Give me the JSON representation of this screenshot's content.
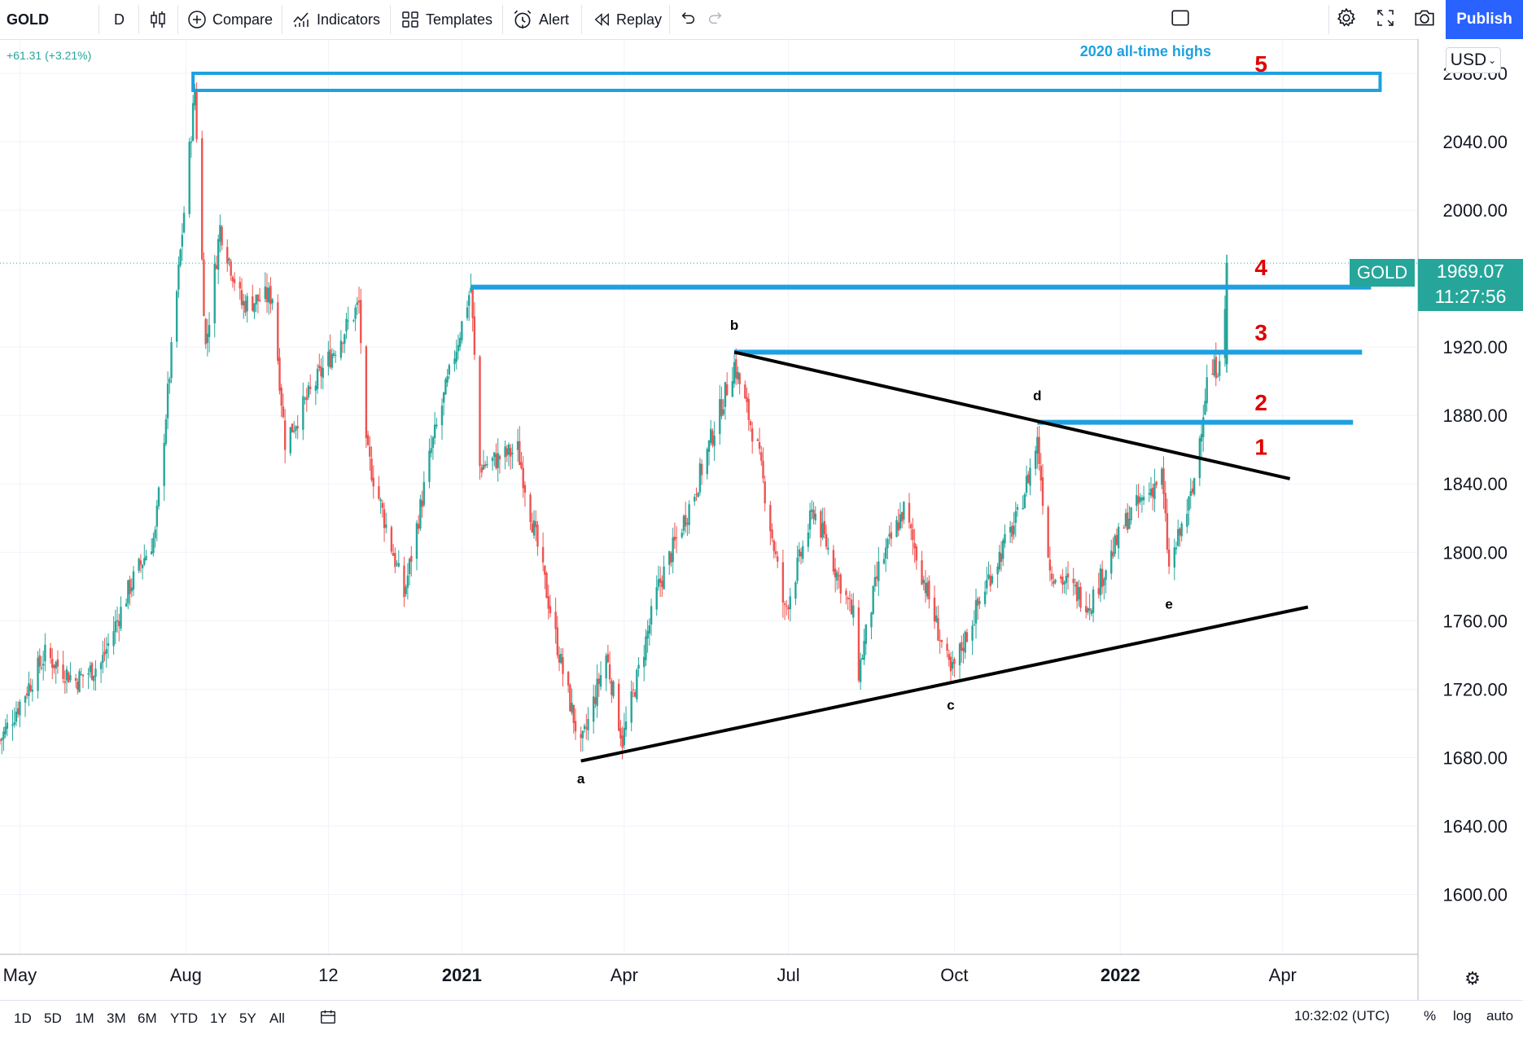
{
  "toolbar": {
    "symbol": "GOLD",
    "interval": "D",
    "compare": "Compare",
    "indicators": "Indicators",
    "templates": "Templates",
    "alert": "Alert",
    "replay": "Replay",
    "publish": "Publish",
    "icons": [
      "candles-icon",
      "plus-circle-icon",
      "indicators-icon",
      "templates-icon",
      "alarm-clock-icon",
      "replay-icon",
      "undo-icon",
      "redo-icon",
      "layout-icon",
      "gear-icon",
      "fullscreen-icon",
      "camera-icon"
    ]
  },
  "legend": {
    "change": "+61.31 (+3.21%)"
  },
  "currency": "USD",
  "last_price": {
    "symbol_tag": "GOLD",
    "price": "1969.07",
    "countdown": "11:27:56"
  },
  "bottom": {
    "ranges": [
      "1D",
      "5D",
      "1M",
      "3M",
      "6M",
      "YTD",
      "1Y",
      "5Y",
      "All"
    ],
    "clock": "10:32:02 (UTC)",
    "percent": "%",
    "log": "log",
    "auto": "auto"
  },
  "colors": {
    "up": "#26a69a",
    "down": "#ef5350",
    "level": "#1ea0e0",
    "accent": "#2962ff",
    "annotation": "#e00000"
  },
  "chart_data": {
    "type": "candlestick",
    "symbol": "GOLD",
    "timeframe": "D",
    "ylim": [
      1565,
      2100
    ],
    "x_range": [
      "2020-04-20",
      "2022-06-15"
    ],
    "yticks": [
      "2080.00",
      "2040.00",
      "2000.00",
      "1920.00",
      "1880.00",
      "1840.00",
      "1800.00",
      "1760.00",
      "1720.00",
      "1680.00",
      "1640.00",
      "1600.00"
    ],
    "xticks": [
      {
        "label": "May",
        "bold": false,
        "date": "2020-05-01"
      },
      {
        "label": "Aug",
        "bold": false,
        "date": "2020-08-01"
      },
      {
        "label": "12",
        "bold": false,
        "date": "2020-10-19"
      },
      {
        "label": "2021",
        "bold": true,
        "date": "2021-01-01"
      },
      {
        "label": "Apr",
        "bold": false,
        "date": "2021-04-01"
      },
      {
        "label": "Jul",
        "bold": false,
        "date": "2021-07-01"
      },
      {
        "label": "Oct",
        "bold": false,
        "date": "2021-10-01"
      },
      {
        "label": "2022",
        "bold": true,
        "date": "2022-01-01"
      },
      {
        "label": "Apr",
        "bold": false,
        "date": "2022-04-01"
      }
    ],
    "anchors": [
      {
        "date": "2020-04-20",
        "price": 1690
      },
      {
        "date": "2020-05-15",
        "price": 1740
      },
      {
        "date": "2020-06-01",
        "price": 1725
      },
      {
        "date": "2020-06-15",
        "price": 1735
      },
      {
        "date": "2020-07-01",
        "price": 1780
      },
      {
        "date": "2020-07-15",
        "price": 1810
      },
      {
        "date": "2020-08-06",
        "price": 2070
      },
      {
        "date": "2020-08-12",
        "price": 1920
      },
      {
        "date": "2020-08-20",
        "price": 1990
      },
      {
        "date": "2020-09-01",
        "price": 1945
      },
      {
        "date": "2020-09-18",
        "price": 1950
      },
      {
        "date": "2020-09-25",
        "price": 1865
      },
      {
        "date": "2020-10-15",
        "price": 1905
      },
      {
        "date": "2020-11-05",
        "price": 1945
      },
      {
        "date": "2020-11-09",
        "price": 1860
      },
      {
        "date": "2020-11-30",
        "price": 1775
      },
      {
        "date": "2020-12-15",
        "price": 1860
      },
      {
        "date": "2021-01-06",
        "price": 1955
      },
      {
        "date": "2021-01-11",
        "price": 1850
      },
      {
        "date": "2021-02-01",
        "price": 1860
      },
      {
        "date": "2021-02-26",
        "price": 1730
      },
      {
        "date": "2021-03-08",
        "price": 1685
      },
      {
        "date": "2021-03-22",
        "price": 1740
      },
      {
        "date": "2021-03-31",
        "price": 1690
      },
      {
        "date": "2021-04-20",
        "price": 1780
      },
      {
        "date": "2021-05-10",
        "price": 1835
      },
      {
        "date": "2021-06-01",
        "price": 1910
      },
      {
        "date": "2021-06-14",
        "price": 1860
      },
      {
        "date": "2021-06-29",
        "price": 1765
      },
      {
        "date": "2021-07-15",
        "price": 1825
      },
      {
        "date": "2021-08-06",
        "price": 1762
      },
      {
        "date": "2021-08-09",
        "price": 1730
      },
      {
        "date": "2021-08-20",
        "price": 1790
      },
      {
        "date": "2021-09-03",
        "price": 1825
      },
      {
        "date": "2021-09-29",
        "price": 1728
      },
      {
        "date": "2021-10-20",
        "price": 1785
      },
      {
        "date": "2021-11-05",
        "price": 1820
      },
      {
        "date": "2021-11-16",
        "price": 1865
      },
      {
        "date": "2021-11-23",
        "price": 1790
      },
      {
        "date": "2021-12-15",
        "price": 1770
      },
      {
        "date": "2022-01-05",
        "price": 1820
      },
      {
        "date": "2022-01-24",
        "price": 1845
      },
      {
        "date": "2022-01-28",
        "price": 1790
      },
      {
        "date": "2022-02-10",
        "price": 1835
      },
      {
        "date": "2022-02-18",
        "price": 1900
      },
      {
        "date": "2022-02-24",
        "price": 1910
      },
      {
        "date": "2022-03-01",
        "price": 1945
      }
    ],
    "last": {
      "date": "2022-03-01",
      "open": 1910,
      "high": 1974,
      "low": 1905,
      "close": 1969.07
    },
    "levels": [
      {
        "label": "5",
        "price": 2075,
        "from": "2020-08-05",
        "to": "2022-05-25",
        "box": true,
        "box_high": 2080,
        "box_low": 2070
      },
      {
        "label": "4",
        "price": 1955,
        "from": "2021-01-06",
        "to": "2022-05-20"
      },
      {
        "label": "3",
        "price": 1917,
        "from": "2021-06-01",
        "to": "2022-05-15"
      },
      {
        "label": "2",
        "price": 1876,
        "from": "2021-11-16",
        "to": "2022-05-10"
      }
    ],
    "trendlines": [
      {
        "from": {
          "date": "2021-03-08",
          "price": 1678
        },
        "to": {
          "date": "2022-04-15",
          "price": 1768
        }
      },
      {
        "from": {
          "date": "2021-06-01",
          "price": 1917
        },
        "to": {
          "date": "2022-04-05",
          "price": 1843
        }
      }
    ],
    "wave_labels": [
      {
        "text": "a",
        "date": "2021-03-08",
        "price": 1665
      },
      {
        "text": "b",
        "date": "2021-06-01",
        "price": 1930
      },
      {
        "text": "c",
        "date": "2021-09-29",
        "price": 1708
      },
      {
        "text": "d",
        "date": "2021-11-16",
        "price": 1889
      },
      {
        "text": "e",
        "date": "2022-01-28",
        "price": 1767
      }
    ],
    "numbers": [
      {
        "text": "1",
        "date": "2022-03-20",
        "price": 1857
      },
      {
        "text": "2",
        "date": "2022-03-20",
        "price": 1883
      },
      {
        "text": "3",
        "date": "2022-03-20",
        "price": 1924
      },
      {
        "text": "4",
        "date": "2022-03-20",
        "price": 1962
      },
      {
        "text": "5",
        "date": "2022-03-20",
        "price": 2081
      }
    ],
    "annotation": {
      "text": "2020 all-time highs",
      "date": "2022-01-15",
      "price": 2090
    }
  }
}
